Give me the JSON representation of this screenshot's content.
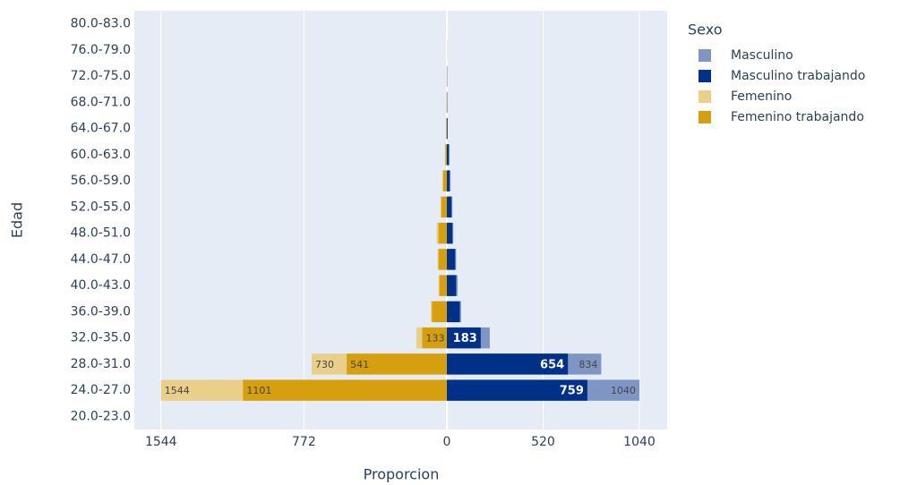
{
  "chart_data": {
    "type": "bar",
    "orientation": "horizontal",
    "barmode": "overlay",
    "xlabel": "Proporcion",
    "ylabel": "Edad",
    "legend_title": "Sexo",
    "legend_position": "right",
    "grid": true,
    "categories": [
      "20.0-23.0",
      "24.0-27.0",
      "28.0-31.0",
      "32.0-35.0",
      "36.0-39.0",
      "40.0-43.0",
      "44.0-47.0",
      "48.0-51.0",
      "52.0-55.0",
      "56.0-59.0",
      "60.0-63.0",
      "64.0-67.0",
      "68.0-71.0",
      "72.0-75.0",
      "76.0-79.0",
      "80.0-83.0"
    ],
    "xlim": [
      -1688,
      1190
    ],
    "xticks": [
      {
        "value": -1544,
        "label": "1544"
      },
      {
        "value": -772,
        "label": "772"
      },
      0,
      520,
      1040
    ],
    "series": [
      {
        "name": "Masculino",
        "color": "#7f96c4",
        "values": [
          0,
          1040,
          834,
          232,
          77,
          58,
          50,
          35,
          30,
          20,
          15,
          5,
          3,
          2,
          1,
          0
        ],
        "value_labels": [
          null,
          "1040",
          "834",
          null,
          null,
          null,
          null,
          null,
          null,
          null,
          null,
          null,
          null,
          null,
          null,
          null
        ]
      },
      {
        "name": "Masculino trabajando",
        "color": "#003087",
        "values": [
          0,
          759,
          654,
          183,
          70,
          50,
          45,
          30,
          25,
          15,
          10,
          3,
          1,
          1,
          0,
          0
        ],
        "value_labels": [
          null,
          "759",
          "654",
          "183",
          null,
          null,
          null,
          null,
          null,
          null,
          null,
          null,
          null,
          null,
          null,
          null
        ]
      },
      {
        "name": "Femenino",
        "color": "#e9cf8a",
        "values": [
          0,
          -1544,
          -730,
          -165,
          -87,
          -45,
          -50,
          -55,
          -35,
          -25,
          -10,
          -5,
          -3,
          -2,
          0,
          0
        ],
        "value_labels": [
          null,
          "1544",
          "730",
          null,
          null,
          null,
          null,
          null,
          null,
          null,
          null,
          null,
          null,
          null,
          null,
          null
        ]
      },
      {
        "name": "Femenino trabajando",
        "color": "#d59f0f",
        "values": [
          0,
          -1101,
          -541,
          -133,
          -80,
          -40,
          -45,
          -45,
          -30,
          -20,
          -8,
          -3,
          -1,
          0,
          0,
          0
        ],
        "value_labels": [
          null,
          "1101",
          "541",
          "133",
          null,
          null,
          null,
          null,
          null,
          null,
          null,
          null,
          null,
          null,
          null,
          null
        ]
      }
    ]
  }
}
